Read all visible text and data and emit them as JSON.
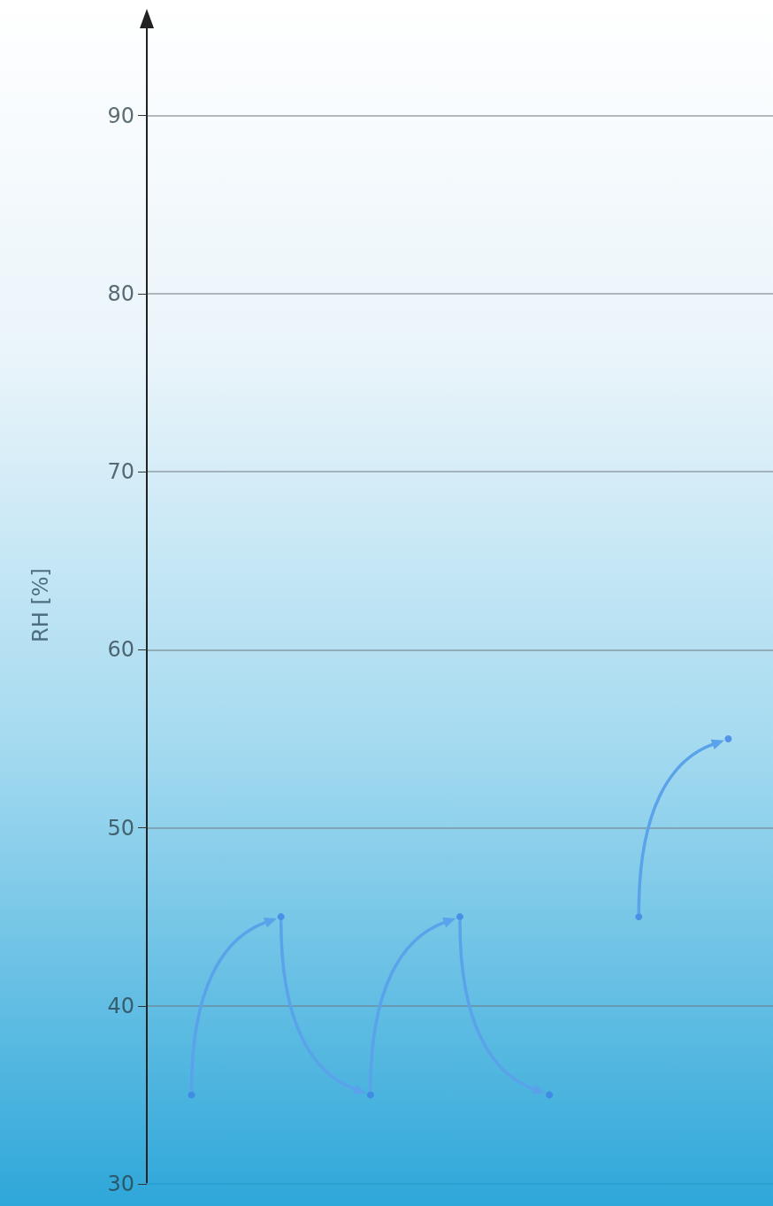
{
  "chart_data": {
    "type": "scatter",
    "ylabel": "RH [%]",
    "categories": [
      null,
      null,
      null,
      null,
      null,
      null,
      null
    ],
    "series": [
      {
        "color": "#3d82e6",
        "values": [
          35,
          45,
          35,
          45,
          35,
          null,
          null
        ]
      },
      {
        "color": "#3d82e6",
        "values": [
          null,
          null,
          null,
          null,
          null,
          45,
          55
        ]
      }
    ],
    "ylim": [
      30,
      95
    ],
    "yticks": [
      30,
      40,
      50,
      60,
      70,
      80,
      90
    ],
    "grid": "y",
    "marker": "circle"
  }
}
